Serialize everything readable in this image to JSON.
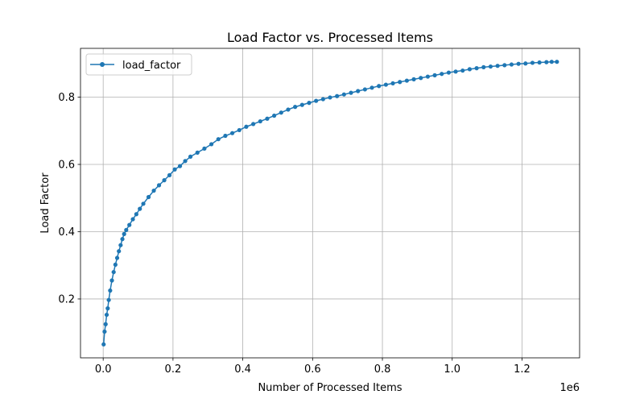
{
  "chart_data": {
    "type": "line",
    "title": "Load Factor vs. Processed Items",
    "xlabel": "Number of Processed Items",
    "ylabel": "Load Factor",
    "x_offset_text": "1e6",
    "x_scale": 1000000,
    "xlim": [
      -0.065,
      1.365
    ],
    "ylim": [
      0.025,
      0.945
    ],
    "x_ticks": [
      0.0,
      0.2,
      0.4,
      0.6,
      0.8,
      1.0,
      1.2
    ],
    "x_tick_labels": [
      "0.0",
      "0.2",
      "0.4",
      "0.6",
      "0.8",
      "1.0",
      "1.2"
    ],
    "y_ticks": [
      0.2,
      0.4,
      0.6,
      0.8
    ],
    "y_tick_labels": [
      "0.2",
      "0.4",
      "0.6",
      "0.8"
    ],
    "grid": true,
    "legend_position": "top-left",
    "series": [
      {
        "name": "load_factor",
        "color": "#1f77b4",
        "marker": "circle",
        "x": [
          0.0013,
          0.004,
          0.007,
          0.01,
          0.013,
          0.016,
          0.02,
          0.025,
          0.03,
          0.035,
          0.04,
          0.045,
          0.05,
          0.055,
          0.06,
          0.066,
          0.075,
          0.085,
          0.095,
          0.105,
          0.115,
          0.13,
          0.145,
          0.16,
          0.175,
          0.19,
          0.205,
          0.22,
          0.235,
          0.25,
          0.27,
          0.29,
          0.31,
          0.33,
          0.35,
          0.37,
          0.39,
          0.41,
          0.43,
          0.45,
          0.47,
          0.49,
          0.51,
          0.53,
          0.55,
          0.57,
          0.59,
          0.61,
          0.63,
          0.65,
          0.67,
          0.69,
          0.71,
          0.73,
          0.75,
          0.77,
          0.79,
          0.81,
          0.83,
          0.85,
          0.87,
          0.89,
          0.91,
          0.93,
          0.95,
          0.97,
          0.99,
          1.01,
          1.03,
          1.05,
          1.07,
          1.09,
          1.11,
          1.13,
          1.15,
          1.17,
          1.19,
          1.21,
          1.23,
          1.25,
          1.27,
          1.285,
          1.3
        ],
        "values": [
          0.065,
          0.103,
          0.125,
          0.153,
          0.172,
          0.197,
          0.225,
          0.255,
          0.28,
          0.302,
          0.322,
          0.342,
          0.36,
          0.378,
          0.393,
          0.405,
          0.42,
          0.437,
          0.452,
          0.468,
          0.483,
          0.503,
          0.522,
          0.538,
          0.553,
          0.568,
          0.585,
          0.595,
          0.61,
          0.623,
          0.635,
          0.647,
          0.66,
          0.675,
          0.685,
          0.693,
          0.702,
          0.712,
          0.72,
          0.728,
          0.736,
          0.745,
          0.754,
          0.763,
          0.771,
          0.777,
          0.783,
          0.789,
          0.794,
          0.799,
          0.803,
          0.808,
          0.813,
          0.818,
          0.823,
          0.828,
          0.833,
          0.837,
          0.841,
          0.845,
          0.849,
          0.853,
          0.857,
          0.861,
          0.865,
          0.869,
          0.873,
          0.876,
          0.879,
          0.883,
          0.886,
          0.889,
          0.891,
          0.893,
          0.895,
          0.897,
          0.899,
          0.9,
          0.902,
          0.903,
          0.904,
          0.905,
          0.905
        ]
      }
    ]
  }
}
